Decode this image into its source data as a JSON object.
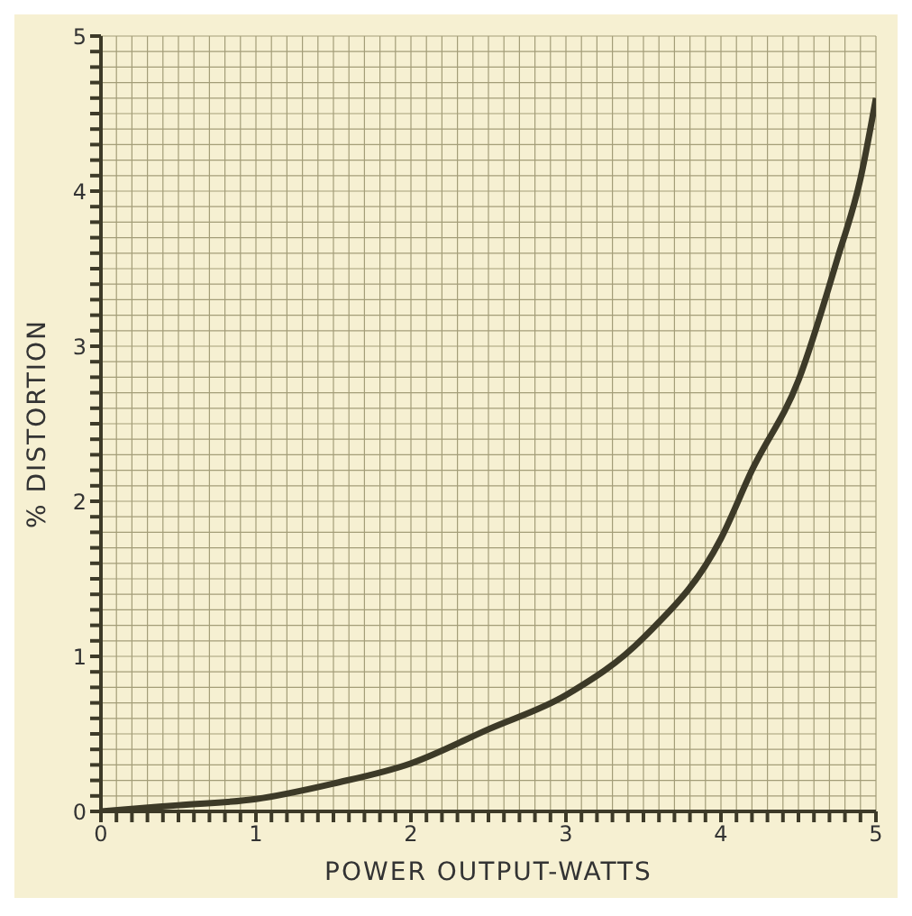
{
  "chart_data": {
    "type": "line",
    "xlabel": "POWER OUTPUT-WATTS",
    "ylabel": "% DISTORTION",
    "x": [
      0,
      0.25,
      0.5,
      1,
      1.5,
      2,
      2.5,
      3,
      3.5,
      4,
      4.2,
      4.5,
      4.75,
      4.9,
      5
    ],
    "series": [
      {
        "color": "#3d3a28",
        "values": [
          0,
          0.02,
          0.04,
          0.08,
          0.18,
          0.31,
          0.53,
          0.75,
          1.12,
          1.76,
          2.2,
          2.78,
          3.56,
          4.08,
          4.6
        ]
      }
    ],
    "xlim": [
      0,
      5
    ],
    "ylim": [
      0,
      5
    ],
    "xticks": [
      0,
      {
        "value": 0.1,
        "label": null
      },
      {
        "value": 0.2,
        "label": null
      },
      {
        "value": 0.3,
        "label": null
      },
      {
        "value": 0.4,
        "label": null
      },
      {
        "value": 0.5,
        "label": null
      },
      {
        "value": 0.6,
        "label": null
      },
      {
        "value": 0.7,
        "label": null
      },
      {
        "value": 0.8,
        "label": null
      },
      {
        "value": 0.9,
        "label": null
      },
      1,
      {
        "value": 1.1,
        "label": null
      },
      {
        "value": 1.2,
        "label": null
      },
      {
        "value": 1.3,
        "label": null
      },
      {
        "value": 1.4,
        "label": null
      },
      {
        "value": 1.5,
        "label": null
      },
      {
        "value": 1.6,
        "label": null
      },
      {
        "value": 1.7,
        "label": null
      },
      {
        "value": 1.8,
        "label": null
      },
      {
        "value": 1.9,
        "label": null
      },
      2,
      {
        "value": 2.1,
        "label": null
      },
      {
        "value": 2.2,
        "label": null
      },
      {
        "value": 2.3,
        "label": null
      },
      {
        "value": 2.4,
        "label": null
      },
      {
        "value": 2.5,
        "label": null
      },
      {
        "value": 2.6,
        "label": null
      },
      {
        "value": 2.7,
        "label": null
      },
      {
        "value": 2.8,
        "label": null
      },
      {
        "value": 2.9,
        "label": null
      },
      3,
      {
        "value": 3.1,
        "label": null
      },
      {
        "value": 3.2,
        "label": null
      },
      {
        "value": 3.3,
        "label": null
      },
      {
        "value": 3.4,
        "label": null
      },
      {
        "value": 3.5,
        "label": null
      },
      {
        "value": 3.6,
        "label": null
      },
      {
        "value": 3.7,
        "label": null
      },
      {
        "value": 3.8,
        "label": null
      },
      {
        "value": 3.9,
        "label": null
      },
      4,
      {
        "value": 4.1,
        "label": null
      },
      {
        "value": 4.2,
        "label": null
      },
      {
        "value": 4.3,
        "label": null
      },
      {
        "value": 4.4,
        "label": null
      },
      {
        "value": 4.5,
        "label": null
      },
      {
        "value": 4.6,
        "label": null
      },
      {
        "value": 4.7,
        "label": null
      },
      {
        "value": 4.8,
        "label": null
      },
      {
        "value": 4.9,
        "label": null
      },
      5
    ],
    "yticks": [
      0,
      {
        "value": 0.1,
        "label": null
      },
      {
        "value": 0.2,
        "label": null
      },
      {
        "value": 0.3,
        "label": null
      },
      {
        "value": 0.4,
        "label": null
      },
      {
        "value": 0.5,
        "label": null
      },
      {
        "value": 0.6,
        "label": null
      },
      {
        "value": 0.7,
        "label": null
      },
      {
        "value": 0.8,
        "label": null
      },
      {
        "value": 0.9,
        "label": null
      },
      1,
      {
        "value": 1.1,
        "label": null
      },
      {
        "value": 1.2,
        "label": null
      },
      {
        "value": 1.3,
        "label": null
      },
      {
        "value": 1.4,
        "label": null
      },
      {
        "value": 1.5,
        "label": null
      },
      {
        "value": 1.6,
        "label": null
      },
      {
        "value": 1.7,
        "label": null
      },
      {
        "value": 1.8,
        "label": null
      },
      {
        "value": 1.9,
        "label": null
      },
      2,
      {
        "value": 2.1,
        "label": null
      },
      {
        "value": 2.2,
        "label": null
      },
      {
        "value": 2.3,
        "label": null
      },
      {
        "value": 2.4,
        "label": null
      },
      {
        "value": 2.5,
        "label": null
      },
      {
        "value": 2.6,
        "label": null
      },
      {
        "value": 2.7,
        "label": null
      },
      {
        "value": 2.8,
        "label": null
      },
      {
        "value": 2.9,
        "label": null
      },
      3,
      {
        "value": 3.1,
        "label": null
      },
      {
        "value": 3.2,
        "label": null
      },
      {
        "value": 3.3,
        "label": null
      },
      {
        "value": 3.4,
        "label": null
      },
      {
        "value": 3.5,
        "label": null
      },
      {
        "value": 3.6,
        "label": null
      },
      {
        "value": 3.7,
        "label": null
      },
      {
        "value": 3.8,
        "label": null
      },
      {
        "value": 3.9,
        "label": null
      },
      4,
      {
        "value": 4.1,
        "label": null
      },
      {
        "value": 4.2,
        "label": null
      },
      {
        "value": 4.3,
        "label": null
      },
      {
        "value": 4.4,
        "label": null
      },
      {
        "value": 4.5,
        "label": null
      },
      {
        "value": 4.6,
        "label": null
      },
      {
        "value": 4.7,
        "label": null
      },
      {
        "value": 4.8,
        "label": null
      },
      {
        "value": 4.9,
        "label": null
      },
      5
    ],
    "grid": true,
    "marker": "none",
    "line_style": "solid",
    "legend": false
  }
}
